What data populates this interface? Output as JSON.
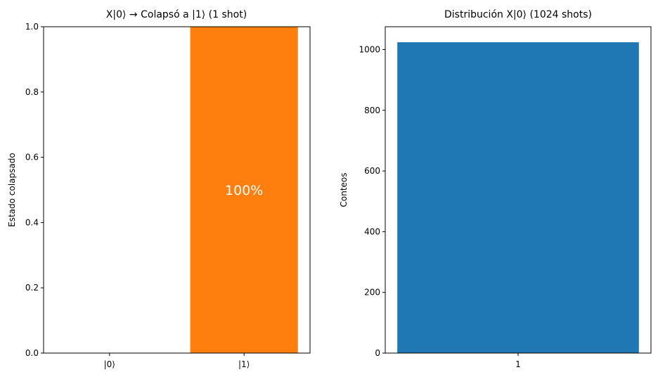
{
  "chart_data": [
    {
      "type": "bar",
      "title": "X|0⟩ → Colapsó a |1⟩ (1 shot)",
      "xlabel": "",
      "ylabel": "Estado colapsado",
      "categories": [
        "|0⟩",
        "|1⟩"
      ],
      "values": [
        0,
        1
      ],
      "ylim": [
        0,
        1
      ],
      "yticks": [
        "0.0",
        "0.2",
        "0.4",
        "0.6",
        "0.8",
        "1.0"
      ],
      "bar_colors": [
        "#ff7f0e",
        "#ff7f0e"
      ],
      "annotations": [
        {
          "category": "|1⟩",
          "text": "100%",
          "y": 0.5
        }
      ]
    },
    {
      "type": "bar",
      "title": "Distribución X|0⟩ (1024 shots)",
      "xlabel": "",
      "ylabel": "Conteos",
      "categories": [
        "1"
      ],
      "values": [
        1024
      ],
      "ylim": [
        0,
        1075.2
      ],
      "yticks": [
        "0",
        "200",
        "400",
        "600",
        "800",
        "1000"
      ],
      "bar_colors": [
        "#1f77b4"
      ]
    }
  ]
}
